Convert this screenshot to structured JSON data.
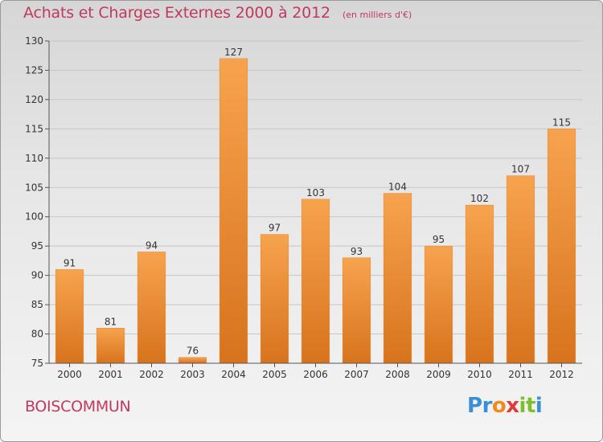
{
  "title": "Achats et Charges Externes 2000 à 2012",
  "unit": "(en milliers d'€)",
  "commune": "BOISCOMMUN",
  "brand": {
    "letters": [
      "P",
      "r",
      "o",
      "x",
      "i",
      "t",
      "i"
    ],
    "colors": [
      "#3a8fd6",
      "#3a8fd6",
      "#f08a1c",
      "#e03a3a",
      "#7bbf2c",
      "#7bbf2c",
      "#3a8fd6"
    ]
  },
  "colors": {
    "title": "#c0395e",
    "bar_top": "#f7a34e",
    "bar_bottom": "#d8731d"
  },
  "chart_data": {
    "type": "bar",
    "categories": [
      "2000",
      "2001",
      "2002",
      "2003",
      "2004",
      "2005",
      "2006",
      "2007",
      "2008",
      "2009",
      "2010",
      "2011",
      "2012"
    ],
    "values": [
      91,
      81,
      94,
      76,
      127,
      97,
      103,
      93,
      104,
      95,
      102,
      107,
      115
    ],
    "ylim": [
      75,
      130
    ],
    "yticks": [
      75,
      80,
      85,
      90,
      95,
      100,
      105,
      110,
      115,
      120,
      125,
      130
    ],
    "grid": true
  }
}
